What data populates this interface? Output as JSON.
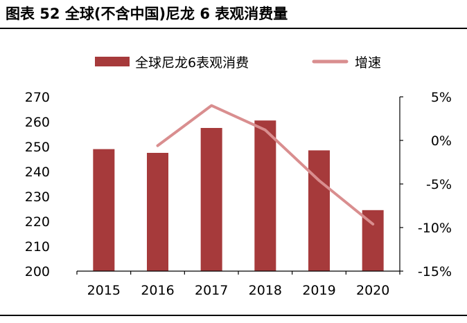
{
  "figure": {
    "title": "图表 52 全球(不含中国)尼龙 6 表观消费量"
  },
  "chart_data": {
    "type": "bar+line",
    "categories": [
      "2015",
      "2016",
      "2017",
      "2018",
      "2019",
      "2020"
    ],
    "series": [
      {
        "name": "全球尼龙6表观消费",
        "type": "bar",
        "axis": "left",
        "values": [
          249,
          247.5,
          257.5,
          260.5,
          248.5,
          224.5
        ]
      },
      {
        "name": "增速",
        "type": "line",
        "axis": "right",
        "values": [
          null,
          -0.6,
          4.0,
          1.2,
          -4.6,
          -9.6
        ]
      }
    ],
    "y_left": {
      "min": 200,
      "max": 270,
      "ticks": [
        "200",
        "210",
        "220",
        "230",
        "240",
        "250",
        "260",
        "270"
      ]
    },
    "y_right": {
      "min": -15,
      "max": 5,
      "ticks": [
        "-15%",
        "-10%",
        "-5%",
        "0%",
        "5%"
      ]
    },
    "colors": {
      "bar": "#A63A3B",
      "line": "#D98E8F"
    },
    "legend": "top-center",
    "grid": false
  }
}
